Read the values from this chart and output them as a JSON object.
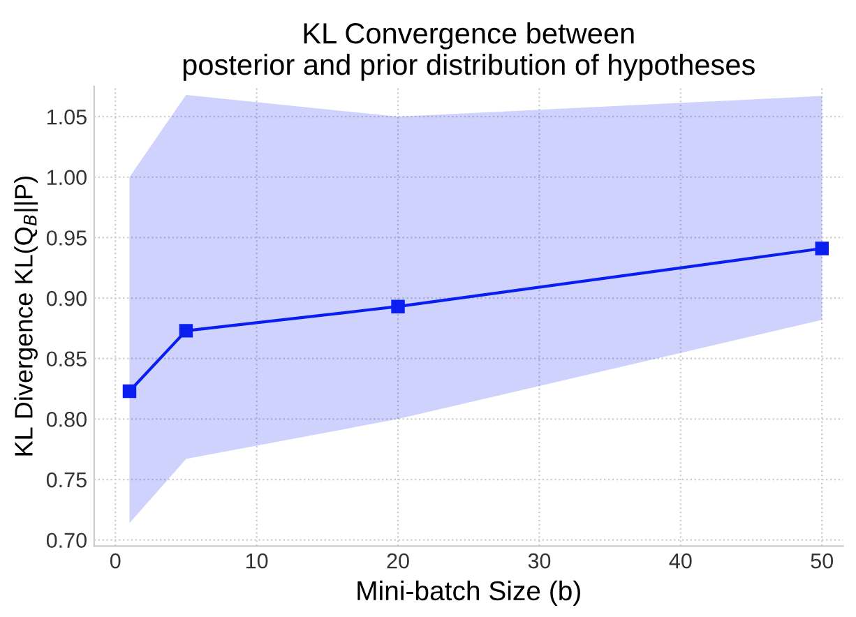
{
  "chart_data": {
    "type": "line",
    "title": "KL Convergence between\nposterior and prior distribution of hypotheses",
    "xlabel": "Mini-batch Size (b)",
    "ylabel": "KL Divergence KL(Q$_{B}$||P)",
    "x": [
      1,
      5,
      20,
      50
    ],
    "series": [
      {
        "color": "#0a1ef0",
        "values": [
          0.823,
          0.873,
          0.893,
          0.941
        ],
        "lower": [
          0.714,
          0.767,
          0.8,
          0.882
        ],
        "upper": [
          1.0,
          1.068,
          1.05,
          1.067
        ]
      }
    ],
    "xlim": [
      -1.5,
      51.5
    ],
    "ylim": [
      0.695,
      1.075
    ],
    "xticks": [
      0,
      10,
      20,
      30,
      40,
      50
    ],
    "yticks": [
      {
        "value": 0.7,
        "label": "0.70"
      },
      0.75,
      {
        "value": 0.8,
        "label": "0.80"
      },
      0.85,
      {
        "value": 0.9,
        "label": "0.90"
      },
      0.95,
      {
        "value": 1,
        "label": "1.00"
      },
      1.05
    ],
    "grid": true,
    "marker": "square",
    "line_style": "solid"
  }
}
